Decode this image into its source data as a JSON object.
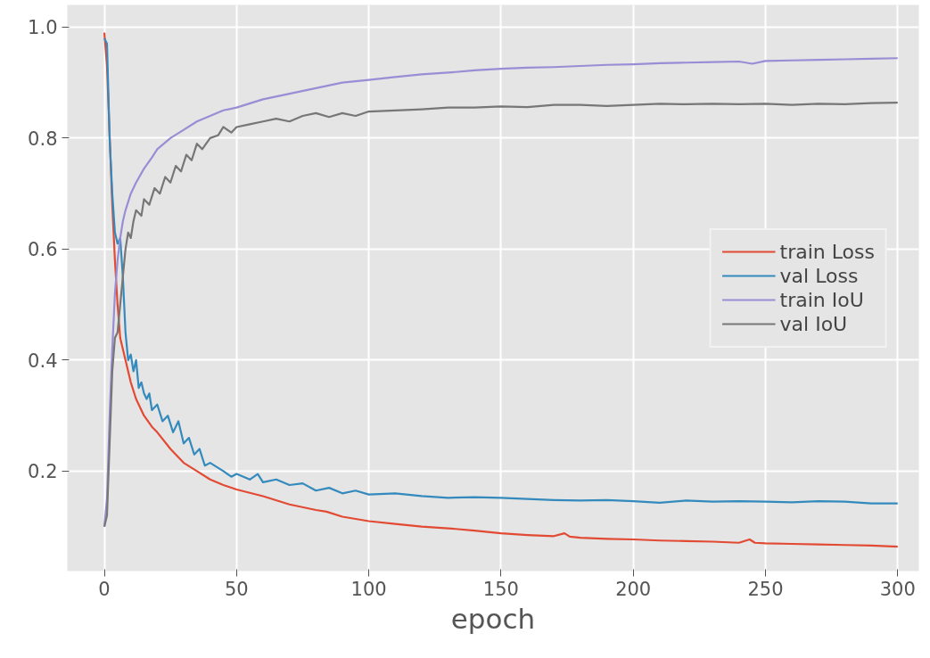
{
  "chart_data": {
    "type": "line",
    "xlabel": "epoch",
    "xlim": [
      -14,
      308
    ],
    "ylim": [
      0.02,
      1.04
    ],
    "xticks": [
      0,
      50,
      100,
      150,
      200,
      250,
      300
    ],
    "yticks": [
      {
        "value": 0.2,
        "label": "0.2"
      },
      {
        "value": 0.4,
        "label": "0.4"
      },
      {
        "value": 0.6,
        "label": "0.6"
      },
      {
        "value": 0.8,
        "label": "0.8"
      },
      {
        "value": 1.0,
        "label": "1.0"
      }
    ],
    "grid": true,
    "legend": "right",
    "line_style": "solid",
    "series": [
      {
        "name": "train Loss",
        "color": "#e24a33",
        "x": [
          0,
          1,
          3,
          4,
          5,
          6,
          8,
          10,
          12,
          15,
          18,
          20,
          25,
          30,
          35,
          40,
          45,
          50,
          60,
          70,
          80,
          84,
          90,
          100,
          110,
          120,
          130,
          140,
          150,
          160,
          170,
          174,
          176,
          180,
          190,
          200,
          210,
          220,
          230,
          240,
          244,
          246,
          250,
          260,
          270,
          280,
          290,
          300
        ],
        "values": [
          0.99,
          0.93,
          0.68,
          0.58,
          0.5,
          0.44,
          0.4,
          0.36,
          0.33,
          0.3,
          0.28,
          0.27,
          0.24,
          0.215,
          0.2,
          0.185,
          0.175,
          0.167,
          0.155,
          0.14,
          0.13,
          0.127,
          0.118,
          0.11,
          0.105,
          0.1,
          0.097,
          0.093,
          0.088,
          0.085,
          0.083,
          0.088,
          0.082,
          0.08,
          0.078,
          0.077,
          0.075,
          0.074,
          0.073,
          0.071,
          0.077,
          0.071,
          0.07,
          0.069,
          0.068,
          0.067,
          0.066,
          0.064
        ]
      },
      {
        "name": "val Loss",
        "color": "#348abd",
        "x": [
          0,
          1,
          2,
          3,
          4,
          5,
          6,
          7,
          8,
          9,
          10,
          11,
          12,
          13,
          14,
          15,
          16,
          17,
          18,
          20,
          22,
          24,
          26,
          28,
          30,
          32,
          34,
          36,
          38,
          40,
          45,
          48,
          50,
          55,
          58,
          60,
          65,
          70,
          75,
          80,
          85,
          90,
          95,
          100,
          110,
          120,
          130,
          140,
          150,
          160,
          170,
          180,
          190,
          200,
          210,
          220,
          230,
          240,
          250,
          260,
          270,
          280,
          290,
          300
        ],
        "values": [
          0.98,
          0.97,
          0.8,
          0.7,
          0.63,
          0.61,
          0.62,
          0.55,
          0.45,
          0.4,
          0.41,
          0.38,
          0.4,
          0.35,
          0.36,
          0.34,
          0.33,
          0.34,
          0.31,
          0.32,
          0.29,
          0.3,
          0.27,
          0.29,
          0.25,
          0.26,
          0.23,
          0.24,
          0.21,
          0.215,
          0.2,
          0.19,
          0.195,
          0.185,
          0.195,
          0.18,
          0.185,
          0.175,
          0.178,
          0.165,
          0.17,
          0.16,
          0.165,
          0.158,
          0.16,
          0.155,
          0.152,
          0.153,
          0.152,
          0.15,
          0.148,
          0.147,
          0.148,
          0.146,
          0.143,
          0.147,
          0.145,
          0.146,
          0.145,
          0.144,
          0.146,
          0.145,
          0.142,
          0.142
        ]
      },
      {
        "name": "train IoU",
        "color": "#988ed5",
        "x": [
          0,
          1,
          2,
          3,
          4,
          5,
          6,
          7,
          8,
          10,
          12,
          15,
          18,
          20,
          25,
          30,
          35,
          40,
          45,
          50,
          60,
          70,
          80,
          90,
          100,
          110,
          120,
          130,
          140,
          150,
          160,
          170,
          180,
          190,
          200,
          210,
          220,
          230,
          240,
          245,
          250,
          260,
          270,
          280,
          290,
          300
        ],
        "values": [
          0.1,
          0.15,
          0.3,
          0.42,
          0.52,
          0.58,
          0.62,
          0.65,
          0.67,
          0.7,
          0.72,
          0.745,
          0.765,
          0.78,
          0.8,
          0.815,
          0.83,
          0.84,
          0.85,
          0.855,
          0.87,
          0.88,
          0.89,
          0.9,
          0.905,
          0.91,
          0.915,
          0.918,
          0.922,
          0.925,
          0.927,
          0.928,
          0.93,
          0.932,
          0.933,
          0.935,
          0.936,
          0.937,
          0.938,
          0.934,
          0.939,
          0.94,
          0.941,
          0.942,
          0.943,
          0.944
        ]
      },
      {
        "name": "val IoU",
        "color": "#777777",
        "x": [
          0,
          1,
          2,
          3,
          4,
          5,
          6,
          7,
          8,
          9,
          10,
          11,
          12,
          14,
          15,
          17,
          19,
          21,
          23,
          25,
          27,
          29,
          31,
          33,
          35,
          37,
          40,
          43,
          45,
          48,
          50,
          55,
          60,
          65,
          70,
          75,
          80,
          85,
          90,
          95,
          100,
          110,
          120,
          130,
          140,
          150,
          160,
          170,
          180,
          190,
          200,
          210,
          220,
          230,
          240,
          250,
          260,
          270,
          280,
          290,
          300
        ],
        "values": [
          0.1,
          0.12,
          0.25,
          0.38,
          0.44,
          0.45,
          0.5,
          0.55,
          0.6,
          0.63,
          0.62,
          0.65,
          0.67,
          0.66,
          0.69,
          0.68,
          0.71,
          0.7,
          0.73,
          0.72,
          0.75,
          0.74,
          0.77,
          0.76,
          0.79,
          0.78,
          0.8,
          0.805,
          0.82,
          0.81,
          0.82,
          0.825,
          0.83,
          0.835,
          0.83,
          0.84,
          0.845,
          0.838,
          0.845,
          0.84,
          0.848,
          0.85,
          0.852,
          0.855,
          0.855,
          0.857,
          0.856,
          0.86,
          0.86,
          0.858,
          0.86,
          0.862,
          0.861,
          0.862,
          0.861,
          0.862,
          0.86,
          0.862,
          0.861,
          0.863,
          0.864
        ]
      }
    ]
  }
}
